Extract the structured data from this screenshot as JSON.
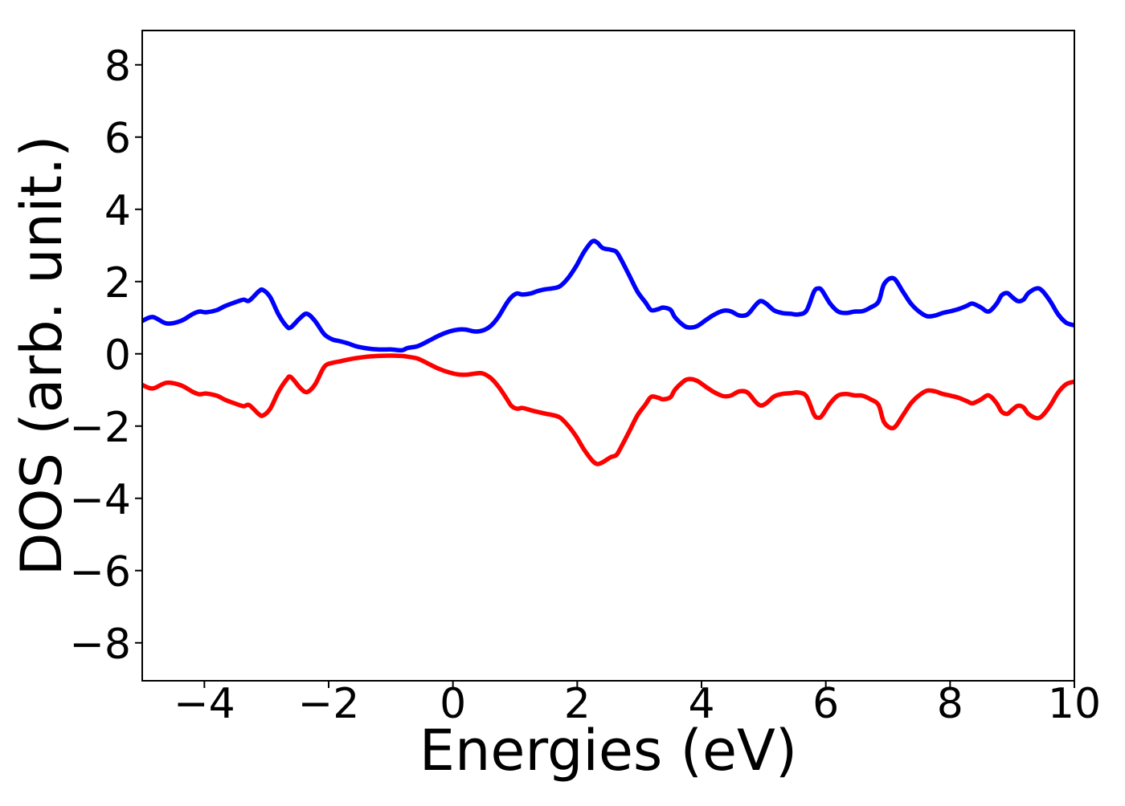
{
  "chart_data": {
    "type": "line",
    "title": "",
    "xlabel": "Energies (eV)",
    "ylabel": "DOS (arb. unit.)",
    "xlim": [
      -5,
      10
    ],
    "ylim": [
      -9.05,
      8.95
    ],
    "grid": false,
    "legend_position": "none",
    "background_color": "#ffffff",
    "axis_color": "#000000",
    "x_ticks": [
      {
        "v": -4,
        "label": "−4"
      },
      {
        "v": -2,
        "label": "−2"
      },
      {
        "v": 0,
        "label": "0"
      },
      {
        "v": 2,
        "label": "2"
      },
      {
        "v": 4,
        "label": "4"
      },
      {
        "v": 6,
        "label": "6"
      },
      {
        "v": 8,
        "label": "8"
      },
      {
        "v": 10,
        "label": "10"
      }
    ],
    "y_ticks": [
      {
        "v": 8,
        "label": "8"
      },
      {
        "v": 6,
        "label": "6"
      },
      {
        "v": 4,
        "label": "4"
      },
      {
        "v": 2,
        "label": "2"
      },
      {
        "v": 0,
        "label": "0"
      },
      {
        "v": -2,
        "label": "−2"
      },
      {
        "v": -4,
        "label": "−4"
      },
      {
        "v": -6,
        "label": "−6"
      },
      {
        "v": -8,
        "label": "−8"
      }
    ],
    "x": [
      -5.0,
      -4.83,
      -4.61,
      -4.38,
      -4.19,
      -4.08,
      -3.97,
      -3.8,
      -3.67,
      -3.5,
      -3.37,
      -3.28,
      -3.13,
      -3.06,
      -2.94,
      -2.81,
      -2.68,
      -2.61,
      -2.46,
      -2.35,
      -2.22,
      -2.07,
      -1.94,
      -1.82,
      -1.69,
      -1.56,
      -1.38,
      -1.21,
      -1.0,
      -0.82,
      -0.73,
      -0.57,
      -0.4,
      -0.22,
      -0.05,
      0.08,
      0.21,
      0.34,
      0.47,
      0.6,
      0.73,
      0.86,
      0.94,
      1.03,
      1.12,
      1.25,
      1.37,
      1.5,
      1.59,
      1.72,
      1.85,
      1.98,
      2.11,
      2.24,
      2.32,
      2.41,
      2.54,
      2.63,
      2.71,
      2.84,
      2.97,
      3.1,
      3.19,
      3.31,
      3.38,
      3.5,
      3.57,
      3.7,
      3.79,
      3.92,
      4.05,
      4.18,
      4.31,
      4.39,
      4.48,
      4.61,
      4.74,
      4.87,
      4.95,
      5.04,
      5.17,
      5.3,
      5.43,
      5.56,
      5.69,
      5.81,
      5.88,
      5.94,
      6.07,
      6.2,
      6.33,
      6.46,
      6.59,
      6.72,
      6.85,
      6.94,
      7.09,
      7.24,
      7.37,
      7.5,
      7.63,
      7.76,
      7.88,
      8.01,
      8.14,
      8.27,
      8.36,
      8.49,
      8.62,
      8.75,
      8.83,
      8.92,
      9.0,
      9.09,
      9.18,
      9.26,
      9.39,
      9.48,
      9.61,
      9.74,
      9.87,
      10.0
    ],
    "series": [
      {
        "name": "blue-curve",
        "color": "#0000ff",
        "line_width": 5.5,
        "values": [
          0.91,
          1.02,
          0.84,
          0.91,
          1.1,
          1.17,
          1.15,
          1.21,
          1.32,
          1.43,
          1.5,
          1.47,
          1.72,
          1.77,
          1.57,
          1.1,
          0.77,
          0.73,
          0.99,
          1.11,
          0.91,
          0.54,
          0.4,
          0.35,
          0.29,
          0.21,
          0.15,
          0.12,
          0.12,
          0.1,
          0.16,
          0.21,
          0.35,
          0.51,
          0.62,
          0.67,
          0.67,
          0.62,
          0.64,
          0.76,
          1.02,
          1.39,
          1.57,
          1.67,
          1.64,
          1.67,
          1.74,
          1.79,
          1.81,
          1.87,
          2.09,
          2.42,
          2.82,
          3.11,
          3.08,
          2.93,
          2.88,
          2.82,
          2.6,
          2.16,
          1.72,
          1.42,
          1.21,
          1.24,
          1.28,
          1.22,
          1.02,
          0.8,
          0.73,
          0.76,
          0.91,
          1.06,
          1.17,
          1.2,
          1.17,
          1.06,
          1.09,
          1.35,
          1.46,
          1.39,
          1.2,
          1.13,
          1.11,
          1.09,
          1.2,
          1.72,
          1.81,
          1.75,
          1.39,
          1.17,
          1.13,
          1.17,
          1.18,
          1.28,
          1.45,
          1.94,
          2.09,
          1.72,
          1.39,
          1.17,
          1.04,
          1.06,
          1.13,
          1.18,
          1.24,
          1.33,
          1.39,
          1.29,
          1.17,
          1.39,
          1.62,
          1.68,
          1.57,
          1.46,
          1.5,
          1.68,
          1.81,
          1.75,
          1.46,
          1.09,
          0.86,
          0.79
        ]
      },
      {
        "name": "red-curve",
        "color": "#ff0000",
        "line_width": 5.5,
        "values": [
          -0.86,
          -0.96,
          -0.8,
          -0.87,
          -1.05,
          -1.12,
          -1.1,
          -1.16,
          -1.27,
          -1.38,
          -1.45,
          -1.42,
          -1.66,
          -1.71,
          -1.52,
          -1.06,
          -0.72,
          -0.64,
          -0.94,
          -1.06,
          -0.85,
          -0.36,
          -0.25,
          -0.21,
          -0.16,
          -0.12,
          -0.08,
          -0.06,
          -0.05,
          -0.06,
          -0.08,
          -0.13,
          -0.27,
          -0.42,
          -0.52,
          -0.57,
          -0.58,
          -0.55,
          -0.54,
          -0.66,
          -0.9,
          -1.23,
          -1.44,
          -1.52,
          -1.5,
          -1.56,
          -1.61,
          -1.66,
          -1.69,
          -1.76,
          -1.98,
          -2.28,
          -2.65,
          -2.95,
          -3.05,
          -3.0,
          -2.86,
          -2.8,
          -2.57,
          -2.14,
          -1.7,
          -1.4,
          -1.19,
          -1.22,
          -1.26,
          -1.2,
          -1.0,
          -0.78,
          -0.7,
          -0.74,
          -0.89,
          -1.04,
          -1.15,
          -1.18,
          -1.15,
          -1.04,
          -1.07,
          -1.33,
          -1.43,
          -1.37,
          -1.18,
          -1.11,
          -1.09,
          -1.07,
          -1.18,
          -1.68,
          -1.77,
          -1.71,
          -1.37,
          -1.15,
          -1.11,
          -1.15,
          -1.16,
          -1.26,
          -1.42,
          -1.9,
          -2.05,
          -1.7,
          -1.37,
          -1.15,
          -1.02,
          -1.04,
          -1.11,
          -1.16,
          -1.22,
          -1.31,
          -1.37,
          -1.27,
          -1.15,
          -1.37,
          -1.6,
          -1.66,
          -1.55,
          -1.44,
          -1.48,
          -1.66,
          -1.78,
          -1.72,
          -1.44,
          -1.07,
          -0.84,
          -0.77
        ]
      }
    ]
  }
}
